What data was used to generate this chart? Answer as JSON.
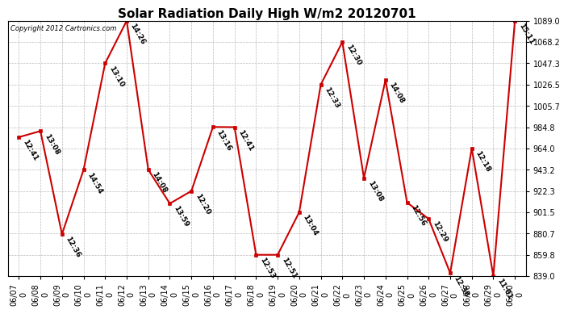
{
  "title": "Solar Radiation Daily High W/m2 20120701",
  "copyright": "Copyright 2012 Cartronics.com",
  "dates": [
    "06/07",
    "06/08",
    "06/09",
    "06/10",
    "06/11",
    "06/12",
    "06/13",
    "06/14",
    "06/15",
    "06/16",
    "06/17",
    "06/18",
    "06/19",
    "06/20",
    "06/21",
    "06/22",
    "06/23",
    "06/24",
    "06/25",
    "06/26",
    "06/27",
    "06/28",
    "06/29",
    "06/30"
  ],
  "values": [
    975.0,
    981.0,
    880.0,
    943.0,
    1047.3,
    1089.0,
    943.2,
    910.0,
    922.3,
    985.0,
    984.8,
    859.8,
    859.8,
    901.5,
    1026.5,
    1068.2,
    935.0,
    1031.0,
    911.0,
    895.0,
    842.0,
    964.0,
    839.0,
    1089.0
  ],
  "labels": [
    "12:41",
    "13:08",
    "12:36",
    "14:54",
    "13:10",
    "14:26",
    "14:08",
    "13:59",
    "12:20",
    "13:16",
    "12:41",
    "12:53",
    "12:51",
    "13:04",
    "12:33",
    "12:30",
    "13:08",
    "14:08",
    "12:56",
    "12:29",
    "12:38",
    "12:18",
    "11:01",
    "15:11"
  ],
  "line_color": "#cc0000",
  "marker_color": "#cc0000",
  "bg_color": "#ffffff",
  "grid_color": "#bbbbbb",
  "yticks": [
    839.0,
    859.8,
    880.7,
    901.5,
    922.3,
    943.2,
    964.0,
    984.8,
    1005.7,
    1026.5,
    1047.3,
    1068.2,
    1089.0
  ],
  "ymin": 839.0,
  "ymax": 1089.0,
  "title_fontsize": 11,
  "label_fontsize": 6.5,
  "tick_fontsize": 7
}
